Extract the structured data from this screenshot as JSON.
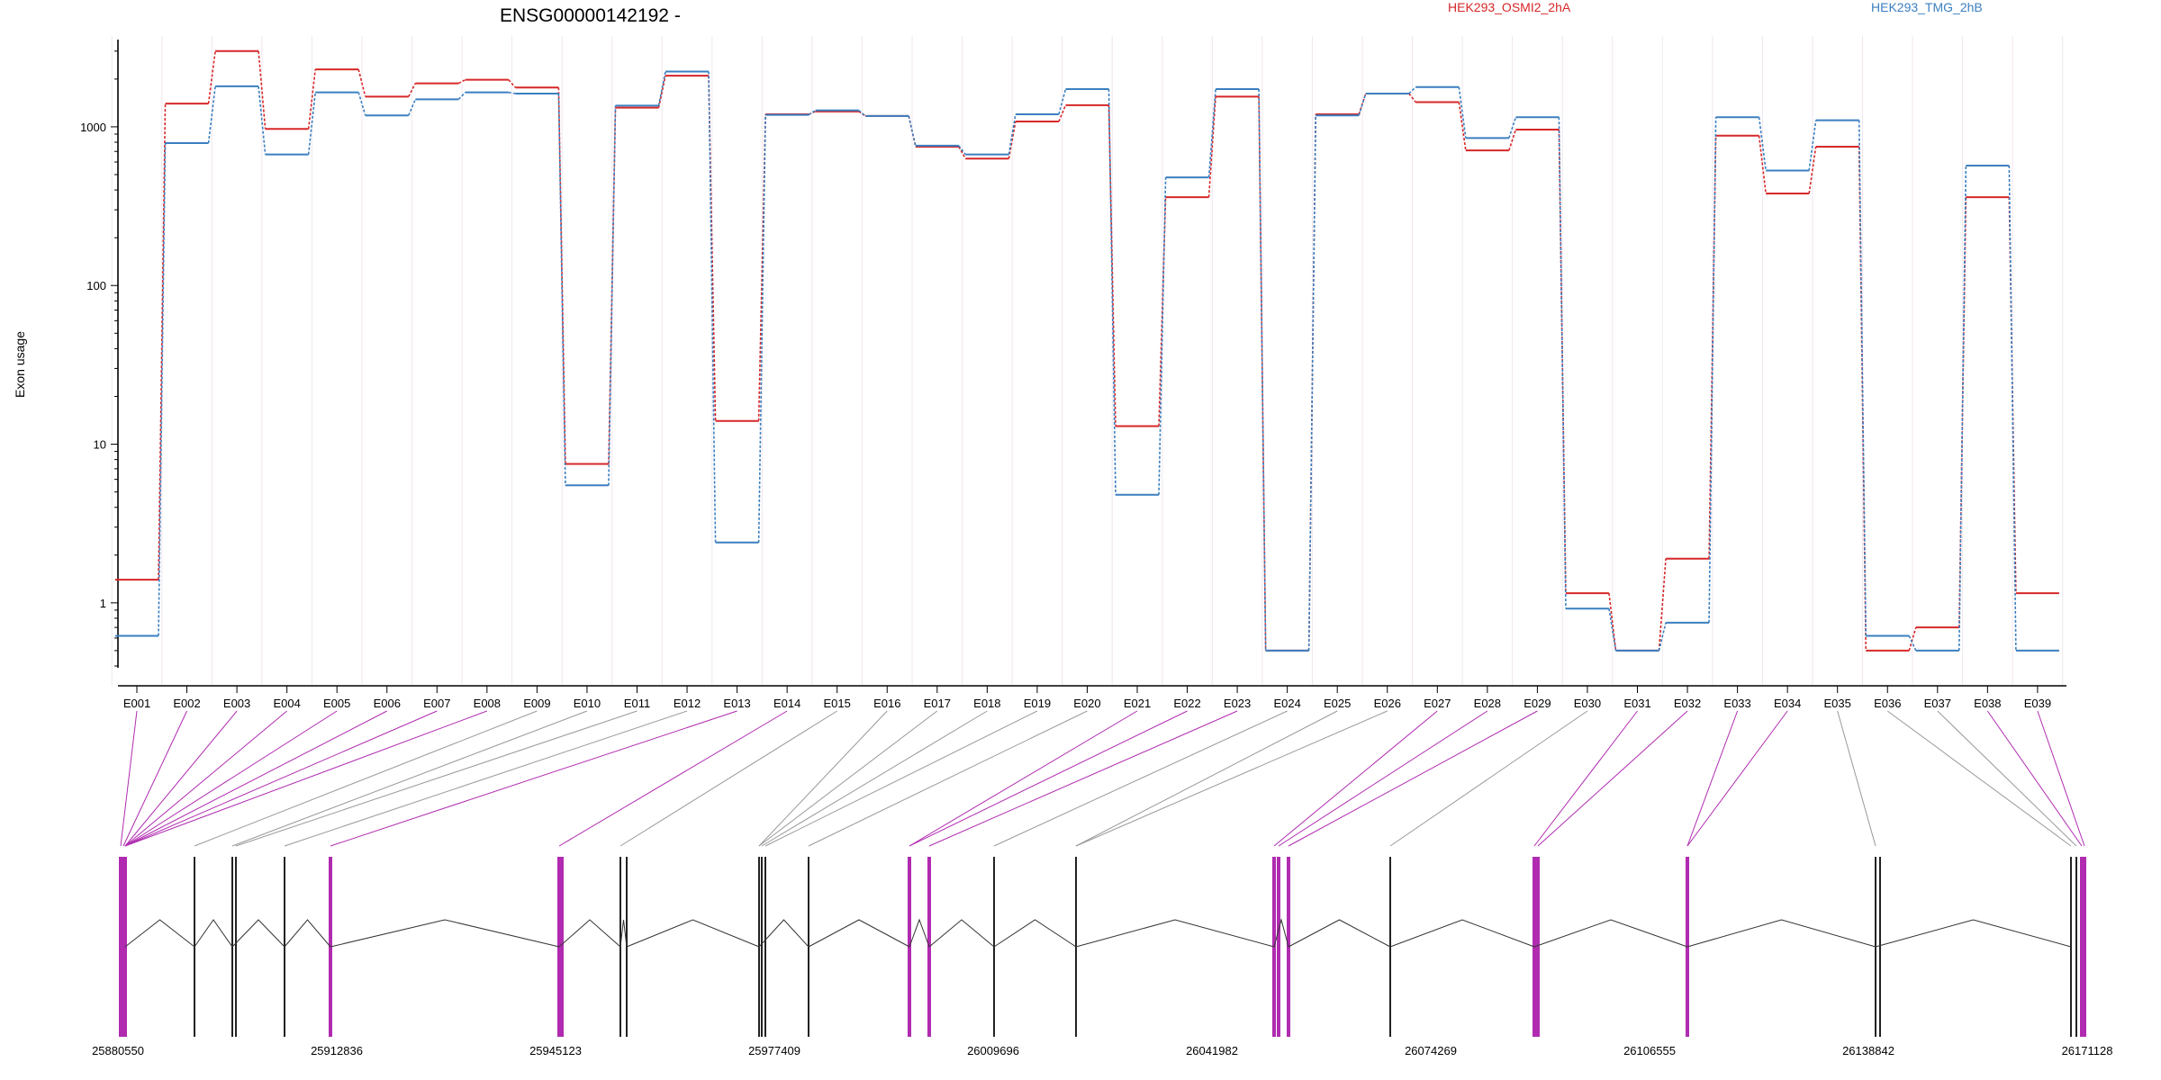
{
  "chart_data": {
    "type": "line",
    "title": "ENSG00000142192 -",
    "ylabel": "Exon usage",
    "yscale": "log",
    "ylim": [
      0.4,
      3500
    ],
    "yticks": [
      1,
      10,
      100,
      1000
    ],
    "ytick_labels": [
      "1",
      "10",
      "100",
      "1000"
    ],
    "grid": "vertical",
    "legend_position": "top-right",
    "categories": [
      "E001",
      "E002",
      "E003",
      "E004",
      "E005",
      "E006",
      "E007",
      "E008",
      "E009",
      "E010",
      "E011",
      "E012",
      "E013",
      "E014",
      "E015",
      "E016",
      "E017",
      "E018",
      "E019",
      "E020",
      "E021",
      "E022",
      "E023",
      "E024",
      "E025",
      "E026",
      "E027",
      "E028",
      "E029",
      "E030",
      "E031",
      "E032",
      "E033",
      "E034",
      "E035",
      "E036",
      "E037",
      "E038",
      "E039"
    ],
    "series": [
      {
        "name": "HEK293_OSMI2_2hA",
        "color": "#d62728",
        "values": [
          1.4,
          1400,
          3000,
          970,
          2300,
          1550,
          1880,
          1980,
          1770,
          7.5,
          1320,
          2100,
          14,
          1200,
          1250,
          1170,
          750,
          630,
          1080,
          1370,
          13,
          360,
          1550,
          0.5,
          1200,
          1620,
          1430,
          710,
          960,
          1.15,
          0.5,
          1.9,
          880,
          380,
          750,
          0.5,
          0.7,
          360,
          1.15
        ]
      },
      {
        "name": "HEK293_TMG_2hB",
        "color": "#3a7fc0",
        "values": [
          0.62,
          790,
          1800,
          670,
          1650,
          1180,
          1490,
          1650,
          1620,
          5.5,
          1360,
          2230,
          2.4,
          1190,
          1270,
          1170,
          760,
          670,
          1200,
          1730,
          4.8,
          480,
          1730,
          0.5,
          1180,
          1620,
          1780,
          850,
          1150,
          0.92,
          0.5,
          0.75,
          1150,
          530,
          1100,
          0.62,
          0.5,
          570,
          0.5
        ]
      }
    ],
    "genomic_ticks": [
      "25880550",
      "25912836",
      "25945123",
      "25977409",
      "26009696",
      "26041982",
      "26074269",
      "26106555",
      "26138842",
      "26171128"
    ]
  }
}
